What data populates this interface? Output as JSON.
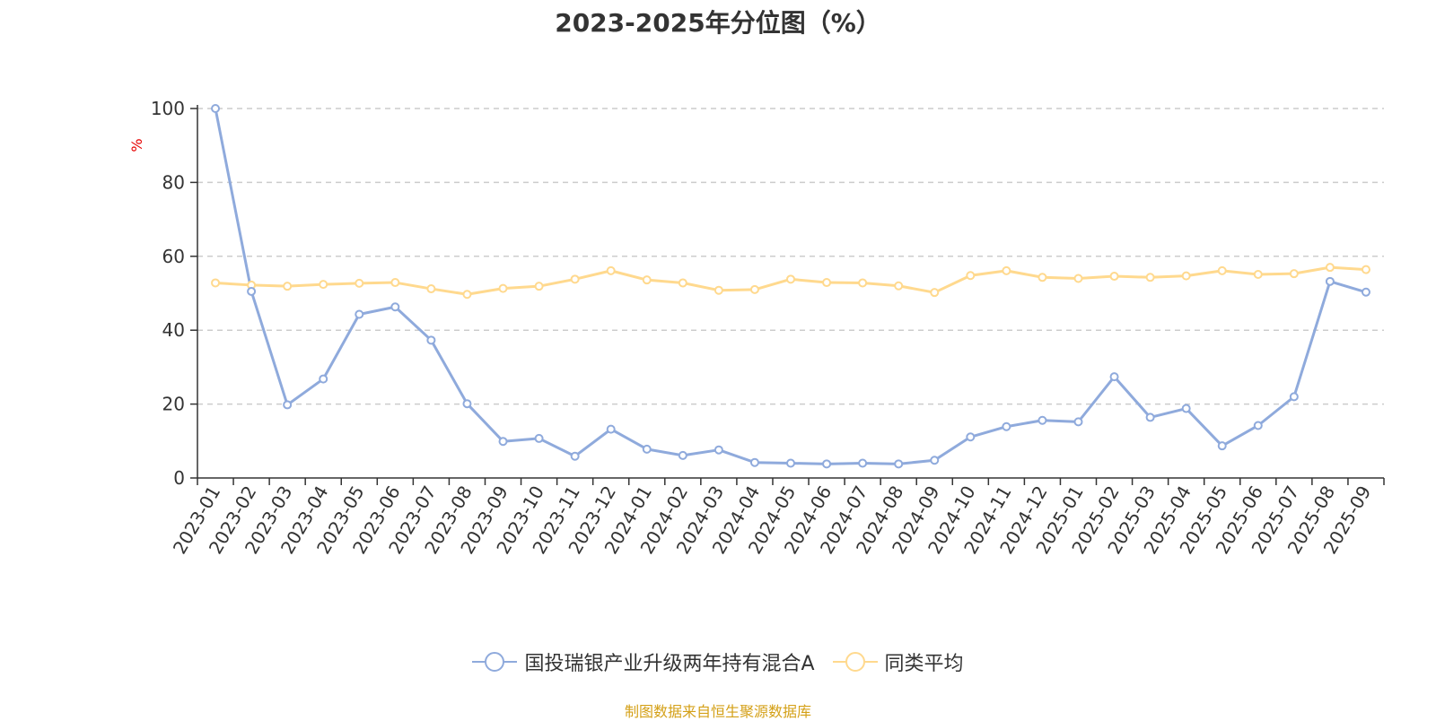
{
  "chart_data": {
    "type": "line",
    "title": "2023-2025年分位图（%）",
    "ylabel": "%",
    "ylim": [
      0,
      100
    ],
    "yticks": [
      0,
      20,
      40,
      60,
      80,
      100
    ],
    "grid": "horizontal dashed",
    "legend_position": "bottom-center",
    "categories": [
      "2023-01",
      "2023-02",
      "2023-03",
      "2023-04",
      "2023-05",
      "2023-06",
      "2023-07",
      "2023-08",
      "2023-09",
      "2023-10",
      "2023-11",
      "2023-12",
      "2024-01",
      "2024-02",
      "2024-03",
      "2024-04",
      "2024-05",
      "2024-06",
      "2024-07",
      "2024-08",
      "2024-09",
      "2024-10",
      "2024-11",
      "2024-12",
      "2025-01",
      "2025-02",
      "2025-03",
      "2025-04",
      "2025-05",
      "2025-06",
      "2025-07",
      "2025-08",
      "2025-09"
    ],
    "series": [
      {
        "name": "国投瑞银产业升级两年持有混合A",
        "color": "#8faadc",
        "values": [
          100,
          50.5,
          19.8,
          26.8,
          44.3,
          46.3,
          37.3,
          20.1,
          9.9,
          10.7,
          5.9,
          13.2,
          7.8,
          6.1,
          7.6,
          4.2,
          4.0,
          3.8,
          4.0,
          3.8,
          4.8,
          11.1,
          13.9,
          15.6,
          15.2,
          27.4,
          16.4,
          18.8,
          8.7,
          14.2,
          22.0,
          53.2,
          50.3
        ]
      },
      {
        "name": "同类平均",
        "color": "#ffd98e",
        "values": [
          52.8,
          52.2,
          51.9,
          52.4,
          52.7,
          52.9,
          51.2,
          49.7,
          51.3,
          51.9,
          53.8,
          56.1,
          53.6,
          52.8,
          50.8,
          51.0,
          53.8,
          52.9,
          52.8,
          52.0,
          50.2,
          54.8,
          56.1,
          54.3,
          54.0,
          54.6,
          54.3,
          54.7,
          56.1,
          55.1,
          55.3,
          57.0,
          56.4
        ]
      }
    ]
  },
  "source_note": "制图数据来自恒生聚源数据库"
}
